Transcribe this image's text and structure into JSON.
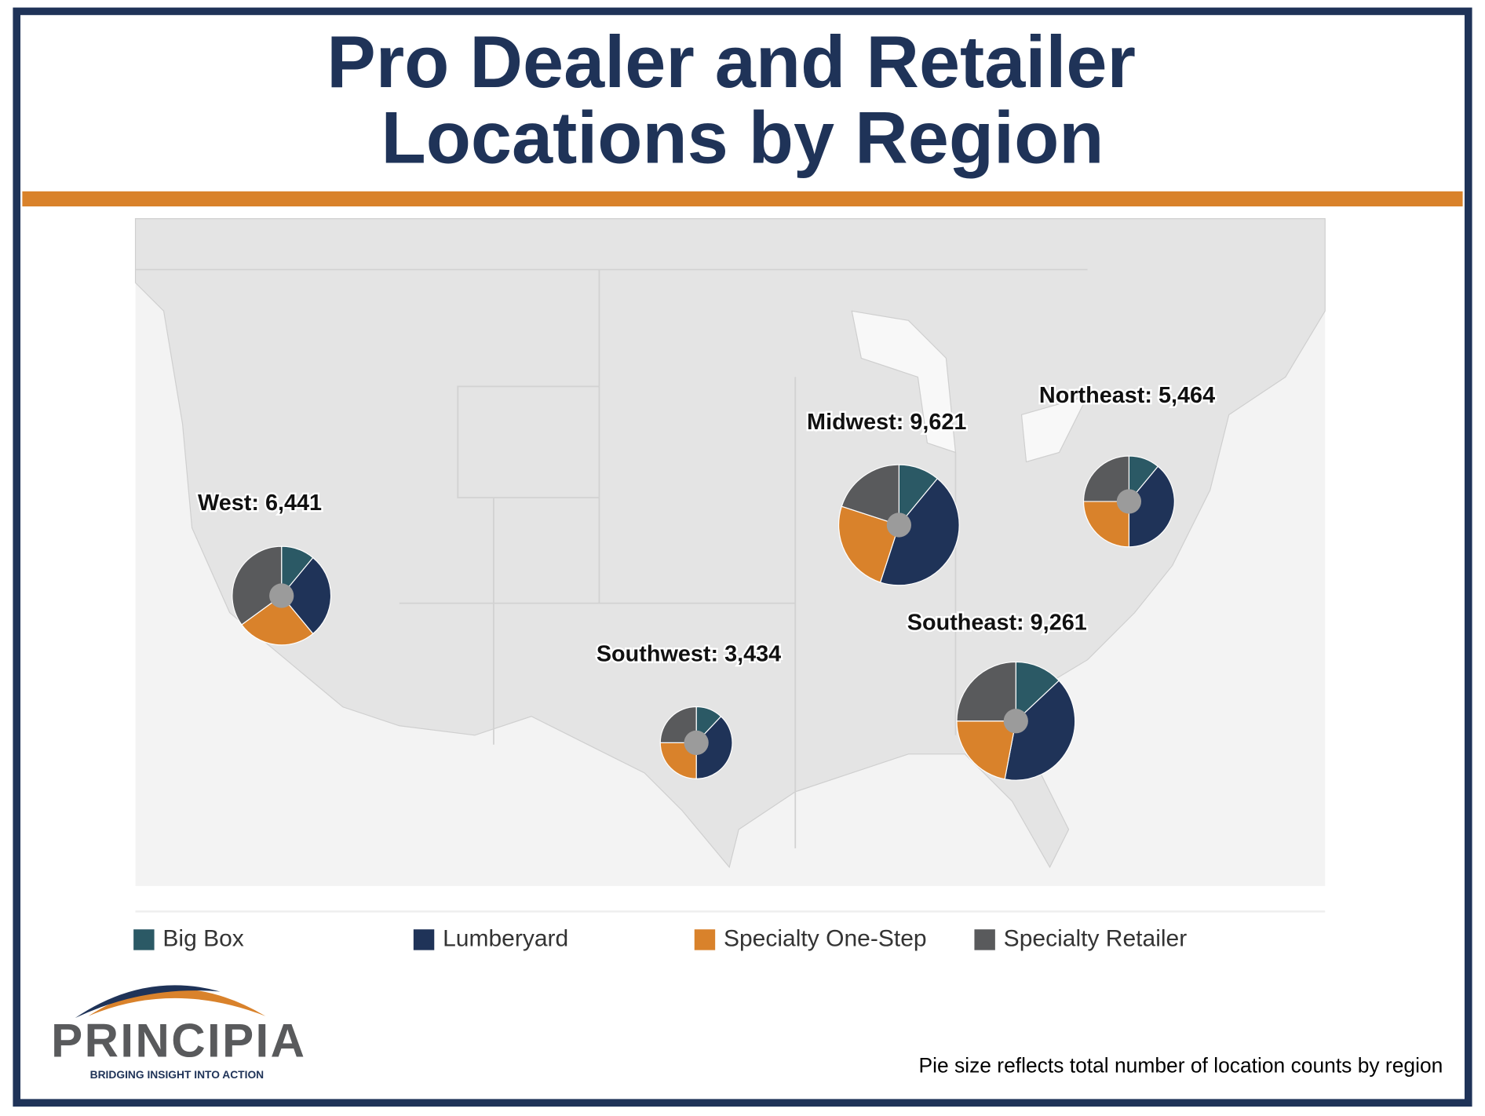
{
  "chart_data": {
    "type": "pie",
    "title": [
      "Pro Dealer and Retailer",
      "Locations by Region"
    ],
    "categories": [
      "Big Box",
      "Lumberyard",
      "Specialty One-Step",
      "Specialty Retailer"
    ],
    "colors": [
      "#2b5965",
      "#1f3358",
      "#d9822b",
      "#595a5c"
    ],
    "pies": [
      {
        "label": "West: 6,441",
        "total": 6441,
        "values": [
          11,
          28,
          26,
          35
        ]
      },
      {
        "label": "Midwest: 9,621",
        "total": 9621,
        "values": [
          11,
          44,
          25,
          20
        ]
      },
      {
        "label": "Northeast: 5,464",
        "total": 5464,
        "values": [
          11,
          39,
          25,
          25
        ]
      },
      {
        "label": "Southwest: 3,434",
        "total": 3434,
        "values": [
          12,
          38,
          25,
          25
        ]
      },
      {
        "label": "Southeast: 9,261",
        "total": 9261,
        "values": [
          13,
          40,
          22,
          25
        ]
      }
    ],
    "note": "Pie size reflects total number of location counts by region",
    "logo": {
      "name": "PRINCIPIA",
      "tagline": "BRIDGING INSIGHT INTO ACTION"
    }
  }
}
